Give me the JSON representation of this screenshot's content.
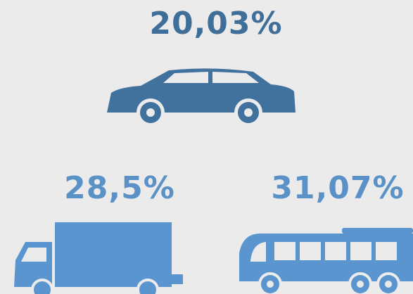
{
  "items": [
    {
      "label": "20,03%"
    },
    {
      "label": "28,5%"
    },
    {
      "label": "31,07%"
    }
  ]
}
